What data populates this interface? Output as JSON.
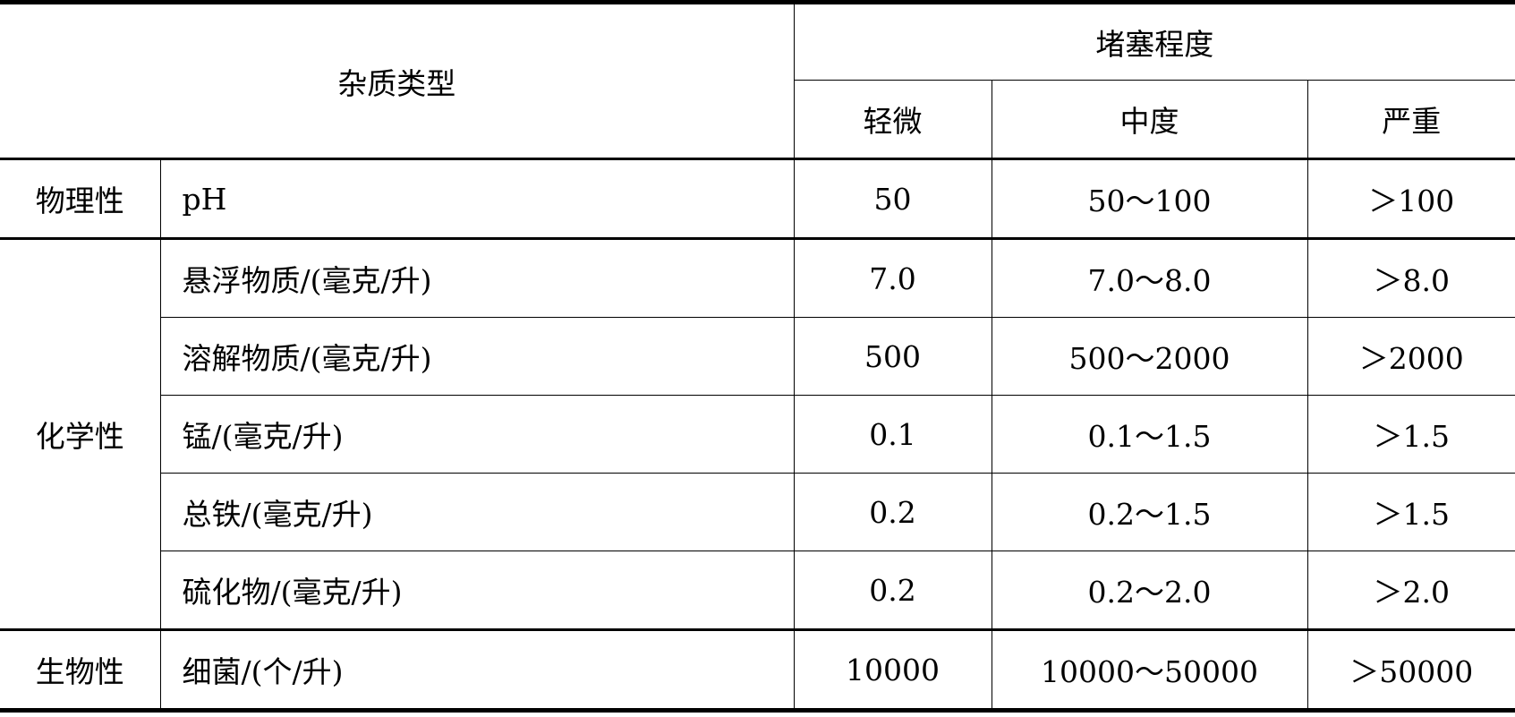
{
  "header": {
    "impurity_type": "杂质类型",
    "clogging_degree": "堵塞程度",
    "levels": [
      "轻微",
      "中度",
      "严重"
    ]
  },
  "groups": {
    "physical": "物理性",
    "chemical": "化学性",
    "biological": "生物性"
  },
  "rows": [
    {
      "item": "pH",
      "mild": "50",
      "moderate": "50～100",
      "severe": "＞100"
    },
    {
      "item": "悬浮物质/(毫克/升)",
      "mild": "7.0",
      "moderate": "7.0～8.0",
      "severe": "＞8.0"
    },
    {
      "item": "溶解物质/(毫克/升)",
      "mild": "500",
      "moderate": "500～2000",
      "severe": "＞2000"
    },
    {
      "item": "锰/(毫克/升)",
      "mild": "0.1",
      "moderate": "0.1～1.5",
      "severe": "＞1.5"
    },
    {
      "item": "总铁/(毫克/升)",
      "mild": "0.2",
      "moderate": "0.2～1.5",
      "severe": "＞1.5"
    },
    {
      "item": "硫化物/(毫克/升)",
      "mild": "0.2",
      "moderate": "0.2～2.0",
      "severe": "＞2.0"
    },
    {
      "item": "细菌/(个/升)",
      "mild": "10000",
      "moderate": "10000～50000",
      "severe": "＞50000"
    }
  ]
}
